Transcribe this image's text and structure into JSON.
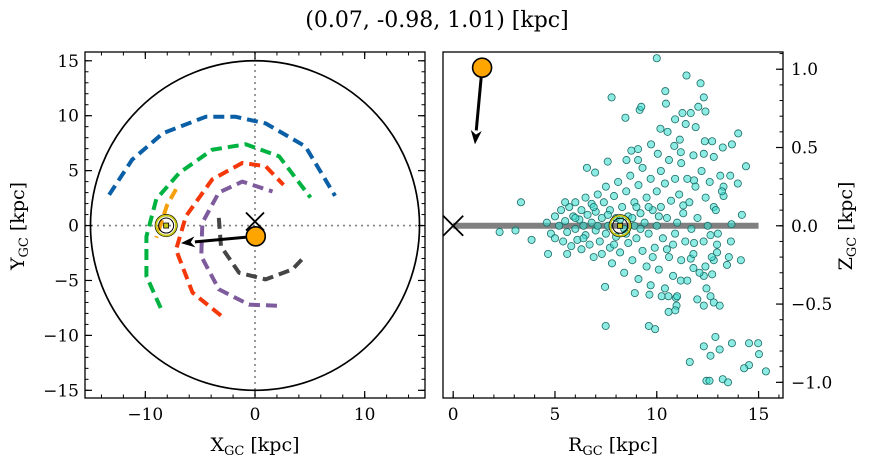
{
  "chart_data": [
    {
      "type": "line",
      "title": "(0.07, -0.98, 1.01) [kpc]",
      "xlabel": {
        "main": "X",
        "sub": "GC",
        "unit": " [kpc]"
      },
      "ylabel": {
        "main": "Y",
        "sub": "GC",
        "unit": " [kpc]"
      },
      "xlim": [
        -15.5,
        15.5
      ],
      "ylim": [
        -15.7,
        15.8
      ],
      "xticks": [
        -10,
        0,
        10
      ],
      "yticks": [
        -15,
        -10,
        -5,
        0,
        5,
        10,
        15
      ],
      "boundary_circle_radius": 15,
      "reference_lines": {
        "x": 0,
        "y": 0,
        "style": "dotted",
        "color": "#808080"
      },
      "arms": [
        {
          "color": "#0a5fa6",
          "points": [
            [
              -13.3,
              2.8
            ],
            [
              -11.2,
              6.0
            ],
            [
              -8.4,
              8.4
            ],
            [
              -4.5,
              9.9
            ],
            [
              -1.75,
              9.9
            ],
            [
              0.97,
              9.3
            ],
            [
              4.6,
              7.2
            ],
            [
              7.3,
              2.7
            ]
          ]
        },
        {
          "color": "#00b341",
          "points": [
            [
              -8.6,
              -7.5
            ],
            [
              -9.9,
              -4.6
            ],
            [
              -9.9,
              -1.0
            ],
            [
              -9.0,
              2.4
            ],
            [
              -6.9,
              4.8
            ],
            [
              -3.9,
              6.9
            ],
            [
              -0.85,
              7.4
            ],
            [
              2.2,
              6.3
            ],
            [
              5.06,
              2.55
            ]
          ]
        },
        {
          "color": "#f5380a",
          "points": [
            [
              -3.1,
              -8.2
            ],
            [
              -5.7,
              -6.1
            ],
            [
              -7.2,
              -2.2
            ],
            [
              -6.3,
              0.85
            ],
            [
              -3.9,
              4.2
            ],
            [
              -1.15,
              5.7
            ],
            [
              0.97,
              5.4
            ],
            [
              2.6,
              3.7
            ]
          ]
        },
        {
          "color": "#7e5b9c",
          "points": [
            [
              2.0,
              -7.3
            ],
            [
              -0.55,
              -7.2
            ],
            [
              -3.3,
              -5.8
            ],
            [
              -4.9,
              -2.8
            ],
            [
              -4.8,
              0.25
            ],
            [
              -3.3,
              3.0
            ],
            [
              -1.15,
              4.0
            ],
            [
              1.6,
              3.1
            ]
          ]
        },
        {
          "color": "#454545",
          "points": [
            [
              -3.3,
              0.7
            ],
            [
              -3.1,
              -1.9
            ],
            [
              -1.45,
              -4.3
            ],
            [
              0.97,
              -4.9
            ],
            [
              3.4,
              -4.0
            ],
            [
              4.45,
              -2.9
            ]
          ]
        },
        {
          "color": "#f5a00a",
          "points": [
            [
              -7.2,
              3.3
            ],
            [
              -8.0,
              1.9
            ],
            [
              -9.0,
              -1.1
            ]
          ]
        }
      ],
      "sun": [
        -8.1,
        0
      ],
      "galactic_center": [
        0,
        0
      ],
      "object": [
        0.07,
        -0.98
      ],
      "velocity_arrow_tip": [
        -6.75,
        -1.6
      ],
      "object_color": "#ffa500"
    },
    {
      "type": "scatter",
      "xlabel": {
        "main": "R",
        "sub": "GC",
        "unit": " [kpc]"
      },
      "ylabel": {
        "main": "Z",
        "sub": "GC",
        "unit": " [kpc]"
      },
      "xlim": [
        -0.5,
        16.2
      ],
      "ylim": [
        -1.1,
        1.11
      ],
      "xticks": [
        0,
        5,
        10,
        15
      ],
      "yticks": [
        1.0,
        0.5,
        0.0,
        -0.5,
        -1.0
      ],
      "ytick_position": "right",
      "marker_color": "#40e0d0",
      "disk_line": {
        "from": 0,
        "to": 15,
        "z": 0,
        "color": "#808080"
      },
      "sun": [
        8.2,
        0
      ],
      "galactic_center": [
        0,
        0
      ],
      "object": [
        1.42,
        1.01
      ],
      "velocity_arrow_tip": [
        1.07,
        0.52
      ],
      "object_color": "#ffa500",
      "points": [
        [
          10.0,
          1.07
        ],
        [
          11.46,
          0.96
        ],
        [
          12.15,
          0.91
        ],
        [
          7.78,
          0.82
        ],
        [
          10.42,
          0.86
        ],
        [
          10.45,
          0.78
        ],
        [
          12.31,
          0.82
        ],
        [
          12.04,
          0.76
        ],
        [
          12.39,
          0.73
        ],
        [
          9.16,
          0.74
        ],
        [
          9.24,
          0.76
        ],
        [
          8.46,
          0.69
        ],
        [
          11.26,
          0.72
        ],
        [
          11.67,
          0.72
        ],
        [
          10.9,
          0.68
        ],
        [
          11.42,
          0.65
        ],
        [
          11.91,
          0.63
        ],
        [
          10.18,
          0.62
        ],
        [
          10.53,
          0.6
        ],
        [
          14.0,
          0.59
        ],
        [
          11.13,
          0.55
        ],
        [
          9.72,
          0.52
        ],
        [
          12.36,
          0.54
        ],
        [
          12.72,
          0.54
        ],
        [
          13.69,
          0.52
        ],
        [
          13.24,
          0.5
        ],
        [
          8.75,
          0.48
        ],
        [
          9.08,
          0.49
        ],
        [
          10.86,
          0.51
        ],
        [
          10.05,
          0.46
        ],
        [
          11.18,
          0.47
        ],
        [
          12.31,
          0.46
        ],
        [
          12.8,
          0.44
        ],
        [
          6.57,
          0.37
        ],
        [
          6.97,
          0.34
        ],
        [
          7.59,
          0.41
        ],
        [
          8.51,
          0.42
        ],
        [
          9.08,
          0.42
        ],
        [
          14.38,
          0.38
        ],
        [
          3.33,
          0.15
        ],
        [
          2.28,
          -0.04
        ],
        [
          3.06,
          -0.03
        ],
        [
          3.85,
          -0.09
        ],
        [
          4.66,
          -0.18
        ],
        [
          5.6,
          -0.18
        ],
        [
          13.98,
          0.27
        ],
        [
          13.61,
          0.32
        ],
        [
          14.18,
          0.07
        ],
        [
          13.67,
          0.01
        ],
        [
          13.64,
          -0.1
        ],
        [
          14.13,
          -0.22
        ],
        [
          13.54,
          -0.2
        ],
        [
          13.45,
          -0.25
        ],
        [
          7.46,
          -0.39
        ],
        [
          7.49,
          -0.64
        ],
        [
          9.61,
          -0.64
        ],
        [
          9.92,
          -0.66
        ],
        [
          8.92,
          -0.43
        ],
        [
          9.64,
          -0.44
        ],
        [
          10.24,
          -0.45
        ],
        [
          10.57,
          -0.45
        ],
        [
          10.94,
          -0.46
        ],
        [
          10.97,
          -0.51
        ],
        [
          10.58,
          -0.55
        ],
        [
          10.91,
          -0.54
        ],
        [
          11.99,
          -0.47
        ],
        [
          12.31,
          -0.51
        ],
        [
          12.64,
          -0.45
        ],
        [
          12.8,
          -0.49
        ],
        [
          13.09,
          -0.51
        ],
        [
          12.44,
          -0.4
        ],
        [
          11.62,
          -0.87
        ],
        [
          12.31,
          -0.77
        ],
        [
          12.88,
          -0.71
        ],
        [
          12.64,
          -0.83
        ],
        [
          13.09,
          -0.79
        ],
        [
          13.69,
          -0.75
        ],
        [
          14.53,
          -0.75
        ],
        [
          14.98,
          -0.75
        ],
        [
          15.02,
          -0.82
        ],
        [
          14.53,
          -0.89
        ],
        [
          14.29,
          -0.91
        ],
        [
          15.36,
          -0.93
        ],
        [
          12.44,
          -0.99
        ],
        [
          12.59,
          -0.99
        ],
        [
          13.24,
          -0.98
        ],
        [
          13.5,
          -1.0
        ],
        [
          11.8,
          -0.27
        ],
        [
          12.31,
          -0.32
        ],
        [
          12.72,
          -0.31
        ],
        [
          12.39,
          -0.26
        ],
        [
          11.67,
          -0.21
        ],
        [
          11.18,
          -0.35
        ],
        [
          11.83,
          -0.11
        ],
        [
          12.64,
          -0.06
        ],
        [
          12.96,
          -0.12
        ],
        [
          12.96,
          -0.17
        ],
        [
          12.8,
          -0.22
        ],
        [
          12.8,
          0.12
        ],
        [
          13.28,
          0.19
        ],
        [
          13.28,
          0.25
        ],
        [
          13.12,
          0.32
        ],
        [
          11.83,
          0.29
        ],
        [
          4.6,
          0.02
        ],
        [
          4.8,
          -0.05
        ],
        [
          5.0,
          0.06
        ],
        [
          5.0,
          -0.08
        ],
        [
          5.2,
          0.0
        ],
        [
          5.3,
          0.1
        ],
        [
          5.4,
          -0.1
        ],
        [
          5.5,
          0.03
        ],
        [
          5.6,
          -0.04
        ],
        [
          5.7,
          0.12
        ],
        [
          5.8,
          -0.13
        ],
        [
          5.9,
          0.06
        ],
        [
          6.0,
          -0.02
        ],
        [
          6.0,
          0.15
        ],
        [
          6.1,
          -0.09
        ],
        [
          6.2,
          0.04
        ],
        [
          6.3,
          -0.15
        ],
        [
          6.3,
          0.1
        ],
        [
          6.4,
          0.0
        ],
        [
          6.5,
          -0.06
        ],
        [
          6.5,
          0.18
        ],
        [
          6.6,
          0.07
        ],
        [
          6.7,
          -0.12
        ],
        [
          6.8,
          0.02
        ],
        [
          6.8,
          0.14
        ],
        [
          6.9,
          -0.2
        ],
        [
          7.0,
          -0.03
        ],
        [
          7.0,
          0.09
        ],
        [
          7.1,
          0.2
        ],
        [
          7.2,
          -0.1
        ],
        [
          7.3,
          0.05
        ],
        [
          7.3,
          -0.18
        ],
        [
          7.4,
          0.15
        ],
        [
          7.5,
          -0.05
        ],
        [
          7.5,
          0.25
        ],
        [
          7.6,
          0.0
        ],
        [
          7.7,
          -0.14
        ],
        [
          7.7,
          0.1
        ],
        [
          7.8,
          -0.24
        ],
        [
          7.9,
          0.19
        ],
        [
          8.0,
          -0.07
        ],
        [
          8.0,
          0.05
        ],
        [
          8.1,
          0.28
        ],
        [
          8.2,
          -0.17
        ],
        [
          8.3,
          0.12
        ],
        [
          8.4,
          -0.02
        ],
        [
          8.4,
          -0.3
        ],
        [
          8.5,
          0.22
        ],
        [
          8.6,
          0.06
        ],
        [
          8.6,
          -0.11
        ],
        [
          8.7,
          0.32
        ],
        [
          8.8,
          -0.22
        ],
        [
          8.9,
          0.0
        ],
        [
          8.9,
          0.15
        ],
        [
          9.0,
          -0.08
        ],
        [
          9.1,
          0.26
        ],
        [
          9.1,
          -0.34
        ],
        [
          9.2,
          0.08
        ],
        [
          9.3,
          -0.16
        ],
        [
          9.3,
          0.37
        ],
        [
          9.4,
          0.02
        ],
        [
          9.5,
          -0.26
        ],
        [
          9.5,
          0.18
        ],
        [
          9.6,
          -0.05
        ],
        [
          9.7,
          0.3
        ],
        [
          9.7,
          -0.38
        ],
        [
          9.8,
          0.1
        ],
        [
          9.9,
          -0.14
        ],
        [
          10.0,
          0.22
        ],
        [
          10.0,
          0.0
        ],
        [
          10.1,
          -0.28
        ],
        [
          10.2,
          0.35
        ],
        [
          10.2,
          0.12
        ],
        [
          10.3,
          -0.08
        ],
        [
          10.4,
          -0.4
        ],
        [
          10.4,
          0.27
        ],
        [
          10.5,
          0.05
        ],
        [
          10.6,
          -0.2
        ],
        [
          10.6,
          0.42
        ],
        [
          10.7,
          0.16
        ],
        [
          10.8,
          -0.12
        ],
        [
          10.8,
          -0.32
        ],
        [
          10.9,
          0.3
        ],
        [
          11.0,
          0.02
        ],
        [
          11.0,
          -0.45
        ],
        [
          11.1,
          0.2
        ],
        [
          11.2,
          -0.22
        ],
        [
          11.2,
          0.4
        ],
        [
          11.3,
          0.08
        ],
        [
          11.4,
          -0.1
        ],
        [
          11.5,
          0.3
        ],
        [
          11.5,
          -0.35
        ],
        [
          11.6,
          0.15
        ],
        [
          11.7,
          -0.02
        ],
        [
          11.8,
          0.45
        ],
        [
          11.8,
          -0.18
        ],
        [
          11.9,
          0.25
        ],
        [
          12.0,
          0.05
        ],
        [
          12.1,
          -0.3
        ],
        [
          12.2,
          0.35
        ],
        [
          12.3,
          -0.1
        ],
        [
          12.4,
          0.18
        ],
        [
          12.5,
          0.0
        ],
        [
          12.6,
          0.28
        ],
        [
          12.7,
          -0.2
        ],
        [
          12.9,
          0.1
        ],
        [
          13.0,
          -0.05
        ],
        [
          13.2,
          0.22
        ],
        [
          6.0,
          0.05
        ],
        [
          6.4,
          -0.08
        ],
        [
          7.1,
          0.0
        ],
        [
          7.6,
          0.07
        ],
        [
          8.2,
          0.04
        ],
        [
          8.8,
          0.05
        ],
        [
          9.2,
          -0.02
        ],
        [
          9.6,
          0.12
        ],
        [
          10.1,
          0.06
        ],
        [
          10.5,
          -0.15
        ],
        [
          11.3,
          0.13
        ],
        [
          5.5,
          0.15
        ],
        [
          6.9,
          0.12
        ],
        [
          7.9,
          -0.12
        ],
        [
          8.5,
          -0.05
        ],
        [
          9.0,
          0.12
        ],
        [
          9.8,
          -0.2
        ],
        [
          10.9,
          -0.05
        ]
      ]
    }
  ]
}
